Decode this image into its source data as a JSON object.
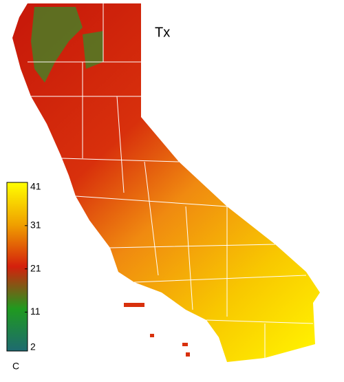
{
  "title": "Tx",
  "colorbar": {
    "lim": [
      2,
      41
    ],
    "ticks": [
      2,
      11,
      21,
      31,
      41
    ],
    "unit": "C",
    "colors": [
      "#1e6a70",
      "#1f9a1f",
      "#d4200c",
      "#f0a000",
      "#ffff00"
    ]
  }
}
